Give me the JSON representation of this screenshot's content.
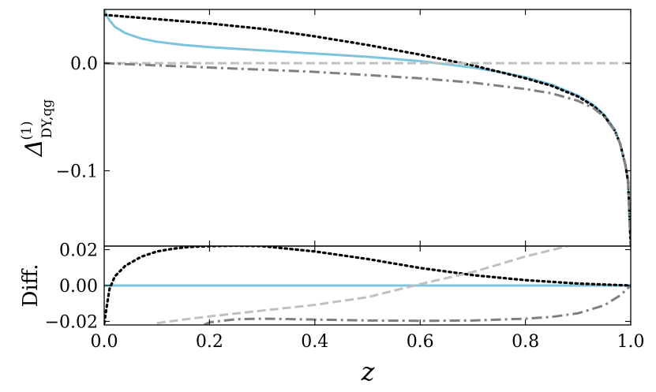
{
  "chart_data": [
    {
      "type": "line",
      "panel": "main",
      "ylabel_main": "Δ",
      "ylabel_sup": "(1)",
      "ylabel_sub": "DY,qg",
      "xlim": [
        0,
        1
      ],
      "ylim": [
        -0.17,
        0.05
      ],
      "xticks": [
        0.0,
        0.2,
        0.4,
        0.6,
        0.8,
        1.0
      ],
      "yticks": [
        -0.1,
        0.0
      ],
      "ytick_labels": [
        "−0.1",
        "0.0"
      ],
      "series": [
        {
          "style": "solid",
          "color": "#7ec4dc",
          "x": [
            0.0,
            0.005,
            0.01,
            0.02,
            0.04,
            0.07,
            0.1,
            0.15,
            0.2,
            0.3,
            0.4,
            0.5,
            0.6,
            0.65,
            0.7,
            0.75,
            0.8,
            0.85,
            0.9,
            0.93,
            0.95,
            0.97,
            0.98,
            0.99,
            0.995,
            1.0
          ],
          "y": [
            0.05,
            0.044,
            0.04,
            0.034,
            0.028,
            0.023,
            0.02,
            0.017,
            0.015,
            0.012,
            0.009,
            0.006,
            0.002,
            -0.001,
            -0.004,
            -0.008,
            -0.013,
            -0.02,
            -0.03,
            -0.039,
            -0.048,
            -0.062,
            -0.075,
            -0.095,
            -0.11,
            -0.17
          ]
        },
        {
          "style": "dotted",
          "color": "#000000",
          "x": [
            0.0,
            0.05,
            0.1,
            0.2,
            0.3,
            0.4,
            0.5,
            0.6,
            0.7,
            0.75,
            0.8,
            0.85,
            0.9,
            0.93,
            0.95,
            0.97,
            0.98,
            0.99,
            0.995,
            1.0
          ],
          "y": [
            0.045,
            0.043,
            0.041,
            0.037,
            0.032,
            0.025,
            0.017,
            0.008,
            -0.002,
            -0.008,
            -0.014,
            -0.021,
            -0.031,
            -0.04,
            -0.049,
            -0.063,
            -0.075,
            -0.095,
            -0.11,
            -0.17
          ]
        },
        {
          "style": "dashed",
          "color": "#c0c0c0",
          "x": [
            0.0,
            1.0
          ],
          "y": [
            0.0,
            0.0
          ]
        },
        {
          "style": "dashdot",
          "color": "#808080",
          "x": [
            0.0,
            0.1,
            0.2,
            0.3,
            0.4,
            0.5,
            0.6,
            0.7,
            0.8,
            0.85,
            0.9,
            0.93,
            0.95,
            0.97,
            0.98,
            0.99,
            0.995,
            1.0
          ],
          "y": [
            0.0,
            -0.002,
            -0.004,
            -0.006,
            -0.008,
            -0.011,
            -0.014,
            -0.018,
            -0.024,
            -0.028,
            -0.035,
            -0.042,
            -0.05,
            -0.063,
            -0.075,
            -0.095,
            -0.11,
            -0.17
          ]
        }
      ]
    },
    {
      "type": "line",
      "panel": "diff",
      "ylabel": "Diff.",
      "xlabel": "z",
      "xlim": [
        0,
        1
      ],
      "ylim": [
        -0.022,
        0.022
      ],
      "xticks": [
        0.0,
        0.2,
        0.4,
        0.6,
        0.8,
        1.0
      ],
      "xtick_labels": [
        "0.0",
        "0.2",
        "0.4",
        "0.6",
        "0.8",
        "1.0"
      ],
      "yticks": [
        -0.02,
        0.0,
        0.02
      ],
      "ytick_labels": [
        "−0.02",
        "0.00",
        "0.02"
      ],
      "series": [
        {
          "style": "solid",
          "color": "#7ec4dc",
          "x": [
            0.0,
            1.0
          ],
          "y": [
            0.0,
            0.0
          ]
        },
        {
          "style": "dotted",
          "color": "#000000",
          "x": [
            0.0,
            0.01,
            0.02,
            0.04,
            0.07,
            0.1,
            0.13,
            0.16,
            0.2,
            0.25,
            0.3,
            0.4,
            0.5,
            0.6,
            0.7,
            0.8,
            0.9,
            1.0
          ],
          "y": [
            -0.021,
            -0.002,
            0.005,
            0.011,
            0.016,
            0.019,
            0.0205,
            0.0215,
            0.022,
            0.0222,
            0.022,
            0.019,
            0.0148,
            0.0098,
            0.0058,
            0.003,
            0.0011,
            0.0
          ]
        },
        {
          "style": "dashed",
          "color": "#c0c0c0",
          "x": [
            0.1,
            0.15,
            0.2,
            0.3,
            0.4,
            0.5,
            0.6,
            0.7,
            0.75,
            0.8,
            0.85,
            0.88
          ],
          "y": [
            -0.021,
            -0.019,
            -0.0172,
            -0.014,
            -0.0108,
            -0.0065,
            0.0008,
            0.0075,
            0.0118,
            0.0162,
            0.0198,
            0.022
          ]
        },
        {
          "style": "dashdot",
          "color": "#808080",
          "x": [
            0.19,
            0.2,
            0.25,
            0.3,
            0.35,
            0.4,
            0.5,
            0.6,
            0.7,
            0.8,
            0.85,
            0.9,
            0.95,
            0.98,
            1.0
          ],
          "y": [
            -0.022,
            -0.0205,
            -0.0188,
            -0.0185,
            -0.0187,
            -0.019,
            -0.0195,
            -0.0197,
            -0.0195,
            -0.0185,
            -0.0175,
            -0.0155,
            -0.011,
            -0.0055,
            0.0
          ]
        }
      ]
    }
  ]
}
